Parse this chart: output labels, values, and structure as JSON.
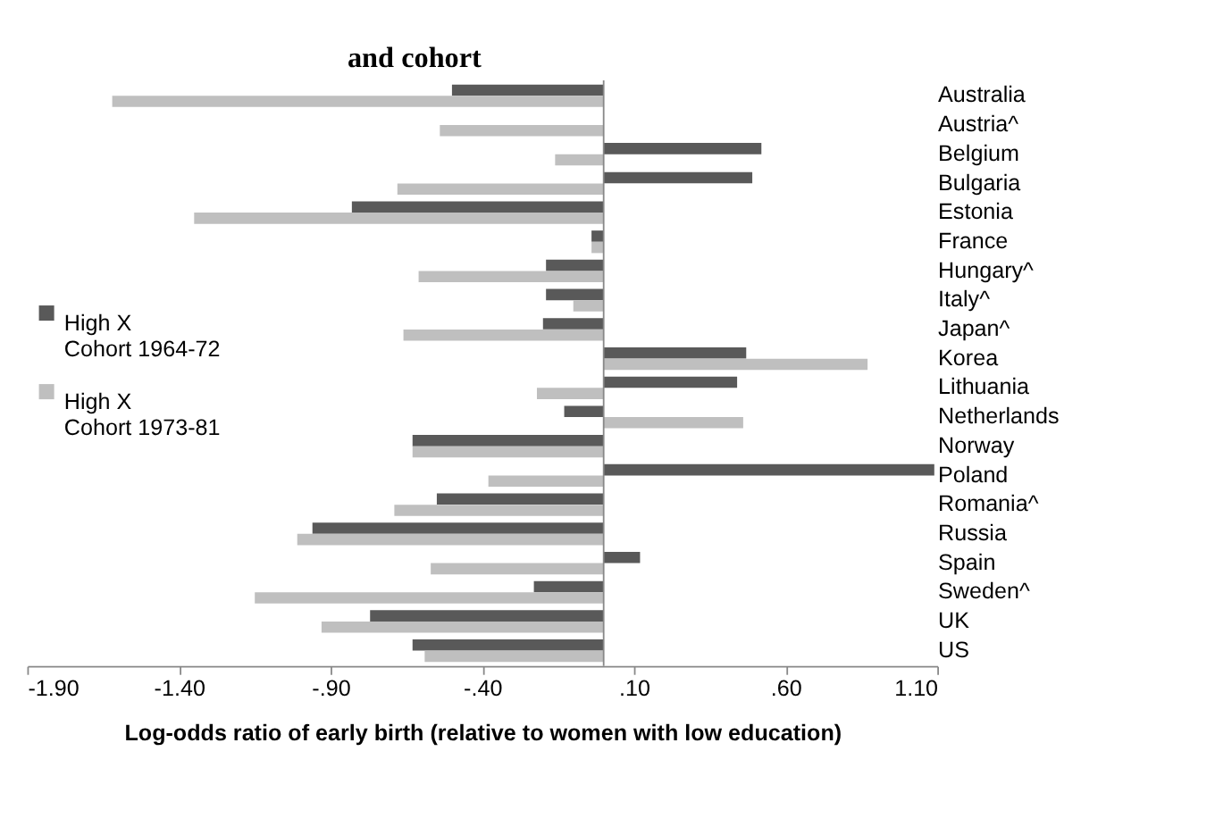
{
  "chart_data": {
    "type": "bar",
    "orientation": "horizontal",
    "title": "and cohort",
    "categories": [
      "Australia",
      "Austria^",
      "Belgium",
      "Bulgaria",
      "Estonia",
      "France",
      "Hungary^",
      "Italy^",
      "Japan^",
      "Korea",
      "Lithuania",
      "Netherlands",
      "Norway",
      "Poland",
      "Romania^",
      "Russia",
      "Spain",
      "Sweden^",
      "UK",
      "US"
    ],
    "series": [
      {
        "name": "High X\nCohort 1964-72",
        "color": "#595959",
        "values": [
          -0.5,
          null,
          0.52,
          0.49,
          -0.83,
          -0.04,
          -0.19,
          -0.19,
          -0.2,
          0.47,
          0.44,
          -0.13,
          -0.63,
          1.09,
          -0.55,
          -0.96,
          0.12,
          -0.23,
          -0.77,
          -0.63
        ]
      },
      {
        "name": "High X\nCohort 1973-81",
        "color": "#bfbfbf",
        "values": [
          -1.62,
          -0.54,
          -0.16,
          -0.68,
          -1.35,
          -0.04,
          -0.61,
          -0.1,
          -0.66,
          0.87,
          -0.22,
          0.46,
          -0.63,
          -0.38,
          -0.69,
          -1.01,
          -0.57,
          -1.15,
          -0.93,
          -0.59
        ]
      }
    ],
    "xlim": [
      -1.9,
      1.1
    ],
    "xticks": [
      {
        "value": -1.9,
        "label": "-1.90"
      },
      {
        "value": -1.4,
        "label": "-1.40"
      },
      {
        "value": -0.9,
        "label": "-.90"
      },
      {
        "value": -0.4,
        "label": "-.40"
      },
      {
        "value": 0.1,
        "label": ".10"
      },
      {
        "value": 0.6,
        "label": ".60"
      },
      {
        "value": 1.1,
        "label": "1.10"
      }
    ],
    "xlabel": "Log-odds ratio of early birth (relative to women with low education)",
    "grid": false,
    "legend": "left"
  }
}
